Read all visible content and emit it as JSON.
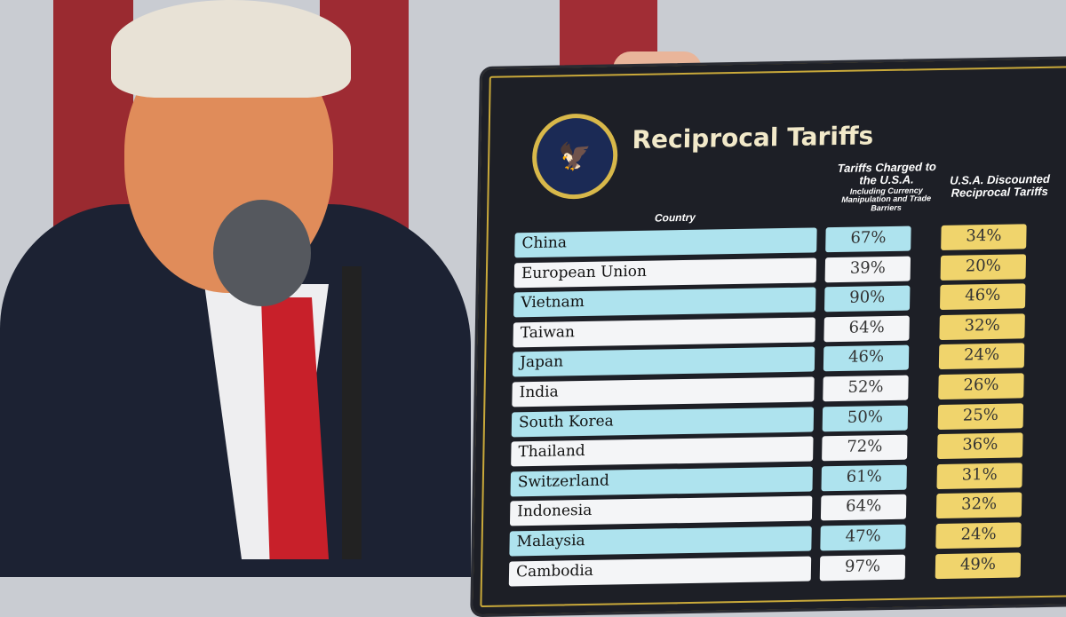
{
  "board": {
    "title": "Reciprocal Tariffs",
    "seal_text": "SEAL OF THE PRESIDENT OF THE UNITED STATES",
    "col_country": "Country",
    "col_charged": "Tariffs Charged to the U.S.A.",
    "col_charged_sub": "Including Currency Manipulation and Trade Barriers",
    "col_reciprocal": "U.S.A. Discounted Reciprocal Tariffs",
    "rows": [
      {
        "country": "China",
        "charged": "67%",
        "reciprocal": "34%"
      },
      {
        "country": "European Union",
        "charged": "39%",
        "reciprocal": "20%"
      },
      {
        "country": "Vietnam",
        "charged": "90%",
        "reciprocal": "46%"
      },
      {
        "country": "Taiwan",
        "charged": "64%",
        "reciprocal": "32%"
      },
      {
        "country": "Japan",
        "charged": "46%",
        "reciprocal": "24%"
      },
      {
        "country": "India",
        "charged": "52%",
        "reciprocal": "26%"
      },
      {
        "country": "South Korea",
        "charged": "50%",
        "reciprocal": "25%"
      },
      {
        "country": "Thailand",
        "charged": "72%",
        "reciprocal": "36%"
      },
      {
        "country": "Switzerland",
        "charged": "61%",
        "reciprocal": "31%"
      },
      {
        "country": "Indonesia",
        "charged": "64%",
        "reciprocal": "32%"
      },
      {
        "country": "Malaysia",
        "charged": "47%",
        "reciprocal": "24%"
      },
      {
        "country": "Cambodia",
        "charged": "97%",
        "reciprocal": "49%"
      }
    ]
  },
  "colors": {
    "blue_row": "#aee3ee",
    "white_row": "#f4f5f7",
    "gold": "#f0d46c",
    "board": "#1d1f26",
    "suit": "#1c2233",
    "tie": "#c8202a"
  }
}
